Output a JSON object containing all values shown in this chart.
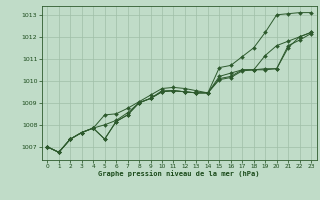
{
  "bg_color": "#c0dcc8",
  "grid_color": "#a0bfa8",
  "line_color": "#2d5a2d",
  "text_color": "#1a4a1a",
  "xlabel": "Graphe pression niveau de la mer (hPa)",
  "xlim": [
    -0.5,
    23.5
  ],
  "ylim": [
    1006.4,
    1013.4
  ],
  "yticks": [
    1007,
    1008,
    1009,
    1010,
    1011,
    1012,
    1013
  ],
  "xticks": [
    0,
    1,
    2,
    3,
    4,
    5,
    6,
    7,
    8,
    9,
    10,
    11,
    12,
    13,
    14,
    15,
    16,
    17,
    18,
    19,
    20,
    21,
    22,
    23
  ],
  "series": [
    [
      1007.0,
      1006.75,
      1007.35,
      1007.65,
      1007.85,
      1007.35,
      1008.15,
      1008.45,
      1009.0,
      1009.2,
      1009.5,
      1009.55,
      1009.5,
      1009.45,
      1009.45,
      1010.1,
      1010.2,
      1010.5,
      1010.5,
      1010.5,
      1010.55,
      1011.5,
      1012.0,
      1012.2
    ],
    [
      1007.0,
      1006.75,
      1007.35,
      1007.65,
      1007.85,
      1007.35,
      1008.15,
      1008.45,
      1009.0,
      1009.2,
      1009.5,
      1009.55,
      1009.5,
      1009.45,
      1009.45,
      1010.05,
      1010.15,
      1010.45,
      1010.5,
      1010.55,
      1010.55,
      1011.6,
      1011.85,
      1012.15
    ],
    [
      1007.0,
      1006.75,
      1007.35,
      1007.65,
      1007.85,
      1008.45,
      1008.5,
      1008.75,
      1009.05,
      1009.35,
      1009.65,
      1009.7,
      1009.65,
      1009.55,
      1009.45,
      1010.6,
      1010.7,
      1011.1,
      1011.5,
      1012.2,
      1013.0,
      1013.05,
      1013.1,
      1013.1
    ],
    [
      1007.0,
      1006.75,
      1007.35,
      1007.65,
      1007.85,
      1008.0,
      1008.2,
      1008.55,
      1009.0,
      1009.2,
      1009.55,
      1009.55,
      1009.5,
      1009.45,
      1009.45,
      1010.2,
      1010.35,
      1010.5,
      1010.5,
      1011.15,
      1011.6,
      1011.8,
      1012.0,
      1012.2
    ]
  ]
}
